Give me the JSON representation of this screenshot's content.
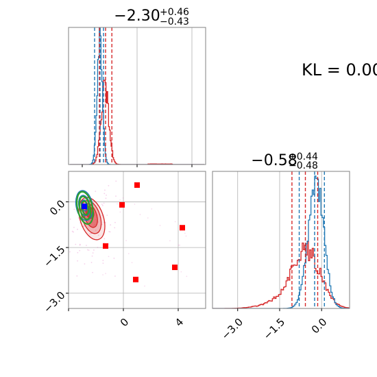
{
  "annotation": {
    "kl_text": "KL = 0.00"
  },
  "colors": {
    "red": "#d62728",
    "blue": "#1f77b4",
    "green": "#2ca02c",
    "marker_red": "#ff0000",
    "marker_blue": "#0000ff",
    "grid": "#b0b0b0"
  },
  "chart_data": [
    {
      "type": "histogram",
      "panel": "marginal-param-1",
      "title": {
        "main": "−2.30",
        "sup": "+0.46",
        "sub": "−0.43"
      },
      "xlim": [
        -5.0,
        5.0
      ],
      "grid": true,
      "series": [
        {
          "name": "",
          "color": "#1f77b4",
          "quantiles": [
            -3.1,
            -2.7,
            -2.45
          ]
        },
        {
          "name": "",
          "color": "#d62728",
          "quantiles": [
            -2.75,
            -2.3,
            -1.84
          ]
        }
      ]
    },
    {
      "type": "histogram",
      "panel": "marginal-param-2",
      "title": {
        "main": "−0.58",
        "sup": "+0.44",
        "sub": "−0.48"
      },
      "xlim": [
        -3.9,
        1.0
      ],
      "xticks": [
        "−3.0",
        "−1.5",
        "0.0"
      ],
      "xtick_values": [
        -3.0,
        -1.5,
        0.0
      ],
      "grid": true,
      "series": [
        {
          "name": "",
          "color": "#1f77b4",
          "quantiles": [
            -0.8,
            -0.25,
            0.1
          ]
        },
        {
          "name": "",
          "color": "#d62728",
          "quantiles": [
            -1.06,
            -0.58,
            -0.14
          ]
        }
      ]
    },
    {
      "type": "scatter",
      "panel": "joint-2d",
      "xlim": [
        -4.0,
        6.0
      ],
      "ylim": [
        -3.5,
        1.0
      ],
      "xticks": [
        "0",
        "4"
      ],
      "xtick_values": [
        0,
        4
      ],
      "yticks": [
        "0.0",
        "−1.5",
        "−3.0"
      ],
      "ytick_values": [
        0.0,
        -1.5,
        -3.0
      ],
      "grid": true,
      "markers": [
        {
          "x": 1.0,
          "y": 0.55,
          "color": "#ff0000"
        },
        {
          "x": -0.1,
          "y": -0.1,
          "color": "#ff0000"
        },
        {
          "x": 4.3,
          "y": -0.85,
          "color": "#ff0000"
        },
        {
          "x": -1.3,
          "y": -1.45,
          "color": "#ff0000"
        },
        {
          "x": 3.75,
          "y": -2.15,
          "color": "#ff0000"
        },
        {
          "x": 0.9,
          "y": -2.55,
          "color": "#ff0000"
        },
        {
          "x": -2.85,
          "y": -0.15,
          "color": "#0000ff"
        }
      ]
    }
  ]
}
